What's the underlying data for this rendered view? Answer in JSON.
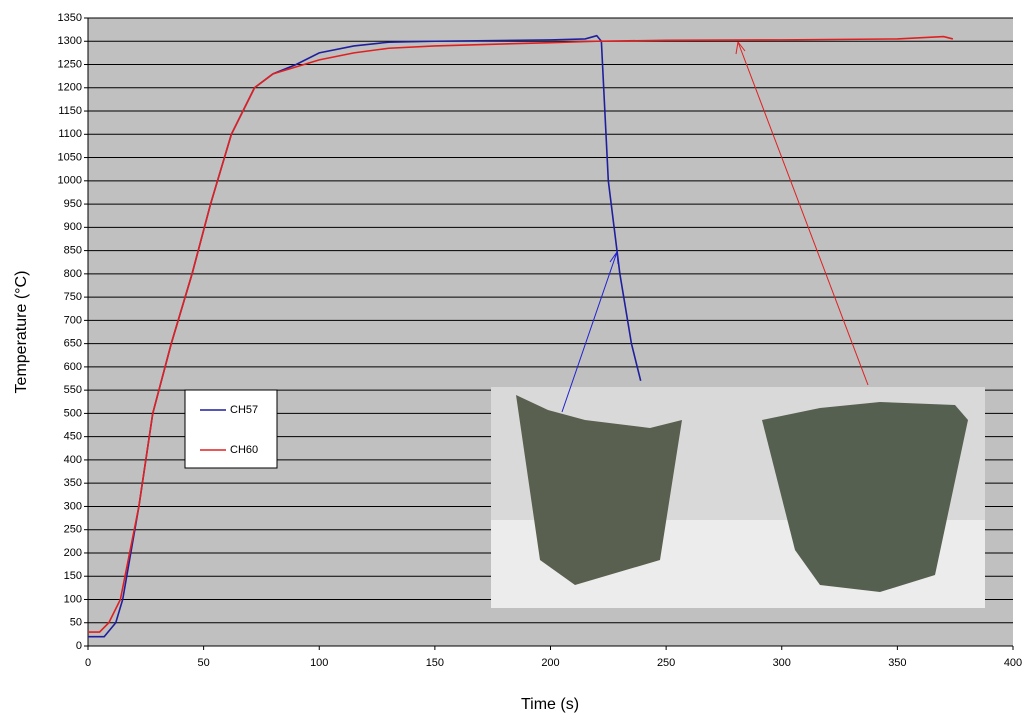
{
  "chart_data": {
    "type": "line",
    "x_label": "Time (s)",
    "y_label": "Temperature (°C)",
    "xlim": [
      0,
      400
    ],
    "xticks": [
      0,
      50,
      100,
      150,
      200,
      250,
      300,
      350,
      400
    ],
    "ylim": [
      0,
      1350
    ],
    "yticks": [
      0,
      50,
      100,
      150,
      200,
      250,
      300,
      350,
      400,
      450,
      500,
      550,
      600,
      650,
      700,
      750,
      800,
      850,
      900,
      950,
      1000,
      1050,
      1100,
      1150,
      1200,
      1250,
      1300,
      1350
    ],
    "grid": true,
    "background": "#c0c0c0",
    "series": [
      {
        "name": "CH57",
        "color": "#1f1f9e",
        "x": [
          0,
          7,
          12,
          15,
          22,
          28,
          36,
          45,
          53,
          62,
          72,
          80,
          90,
          100,
          115,
          130,
          150,
          200,
          215,
          220,
          222,
          225,
          230,
          235,
          239
        ],
        "values": [
          20,
          20,
          50,
          100,
          300,
          500,
          650,
          800,
          950,
          1100,
          1200,
          1230,
          1250,
          1275,
          1290,
          1298,
          1300,
          1303,
          1305,
          1312,
          1300,
          1000,
          800,
          650,
          570
        ]
      },
      {
        "name": "CH60",
        "color": "#e02020",
        "x": [
          0,
          5,
          9,
          14,
          22,
          28,
          36,
          45,
          53,
          62,
          72,
          80,
          90,
          100,
          115,
          130,
          150,
          200,
          220,
          250,
          300,
          350,
          370,
          374
        ],
        "values": [
          30,
          30,
          50,
          100,
          300,
          500,
          650,
          800,
          950,
          1100,
          1200,
          1230,
          1245,
          1260,
          1275,
          1285,
          1290,
          1297,
          1300,
          1302,
          1303,
          1305,
          1310,
          1305
        ]
      }
    ]
  }
}
